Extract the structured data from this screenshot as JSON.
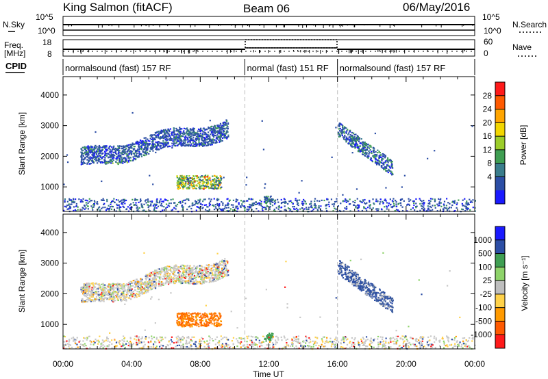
{
  "header": {
    "station": "King Salmon (fitACF)",
    "beam": "Beam 06",
    "date": "06/May/2016"
  },
  "strip_panels": {
    "nsky_label": "N.Sky",
    "nsky_ticks": [
      "10^5",
      "10^0"
    ],
    "nsearch_label": "N.Search",
    "nsearch_ticks": [
      "10^5",
      "10^0"
    ],
    "freq_label": "Freq.",
    "freq_unit": "[MHz]",
    "freq_ticks": [
      "18",
      "8"
    ],
    "nave_label": "Nave",
    "nave_ticks": [
      "60",
      "0"
    ],
    "cpid_label": "CPID"
  },
  "cpid_segments": [
    {
      "label": "normalsound (fast) 157 RF",
      "start_hour": 0.0,
      "end_hour": 10.6
    },
    {
      "label": "normal (fast) 151 RF",
      "start_hour": 10.6,
      "end_hour": 16.0
    },
    {
      "label": "normalsound (fast) 157 RF",
      "start_hour": 16.0,
      "end_hour": 24.0
    }
  ],
  "x_axis": {
    "label": "Time UT",
    "ticks": [
      "00:00",
      "04:00",
      "08:00",
      "12:00",
      "16:00",
      "20:00",
      "00:00"
    ],
    "tick_hours": [
      0,
      4,
      8,
      12,
      16,
      20,
      24
    ],
    "range": [
      0,
      24
    ]
  },
  "chart_data": [
    {
      "type": "heatmap",
      "panel": "power",
      "ylabel": "Slant Range [km]",
      "ylim": [
        200,
        4600
      ],
      "y_ticks": [
        1000,
        2000,
        3000,
        4000
      ],
      "colorbar_label": "Power [dB]",
      "colorbar_ticks": [
        "4",
        "8",
        "12",
        "16",
        "20",
        "24",
        "28"
      ],
      "colorbar_colors": [
        "#1a1aff",
        "#2c4ea5",
        "#3a7d8c",
        "#3f9e52",
        "#9ccd2a",
        "#f2d600",
        "#ffa500",
        "#ff5a00",
        "#ff1a1a"
      ],
      "regions": [
        {
          "name": "F-region band",
          "t": [
            1.0,
            9.6
          ],
          "range_km": [
            1400,
            3400
          ],
          "dominant_db": 6
        },
        {
          "name": "near-range patch",
          "t": [
            6.5,
            9.2
          ],
          "range_km": [
            900,
            1400
          ],
          "dominant_db": 18
        },
        {
          "name": "afternoon streaks",
          "t": [
            16.0,
            19.2
          ],
          "range_km": [
            1100,
            2900
          ],
          "dominant_db": 8
        },
        {
          "name": "ground scatter",
          "t": [
            0.0,
            24.0
          ],
          "range_km": [
            200,
            700
          ],
          "dominant_db": 8
        }
      ]
    },
    {
      "type": "heatmap",
      "panel": "velocity",
      "ylabel": "Slant Range [km]",
      "ylim": [
        200,
        4600
      ],
      "y_ticks": [
        1000,
        2000,
        3000,
        4000
      ],
      "colorbar_label": "Velocity [m s⁻¹]",
      "colorbar_ticks": [
        "1000",
        "500",
        "100",
        "25",
        "-25",
        "-100",
        "-500",
        "-1000"
      ],
      "colorbar_colors": [
        "#1a1aff",
        "#2c4ea5",
        "#3f9e52",
        "#8ed36a",
        "#bebebe",
        "#ffd24a",
        "#ff9a00",
        "#ff5a00",
        "#ff1a1a"
      ],
      "regions": [
        {
          "name": "F-region band",
          "t": [
            1.0,
            9.6
          ],
          "range_km": [
            1400,
            3400
          ],
          "dominant_ms": 0
        },
        {
          "name": "near-range patch",
          "t": [
            6.5,
            9.2
          ],
          "range_km": [
            900,
            1400
          ],
          "dominant_ms": -500
        },
        {
          "name": "afternoon streaks",
          "t": [
            16.0,
            19.2
          ],
          "range_km": [
            1100,
            2900
          ],
          "dominant_ms": 500
        },
        {
          "name": "ground scatter",
          "t": [
            0.0,
            24.0
          ],
          "range_km": [
            200,
            700
          ],
          "dominant_ms": 0
        }
      ]
    }
  ]
}
